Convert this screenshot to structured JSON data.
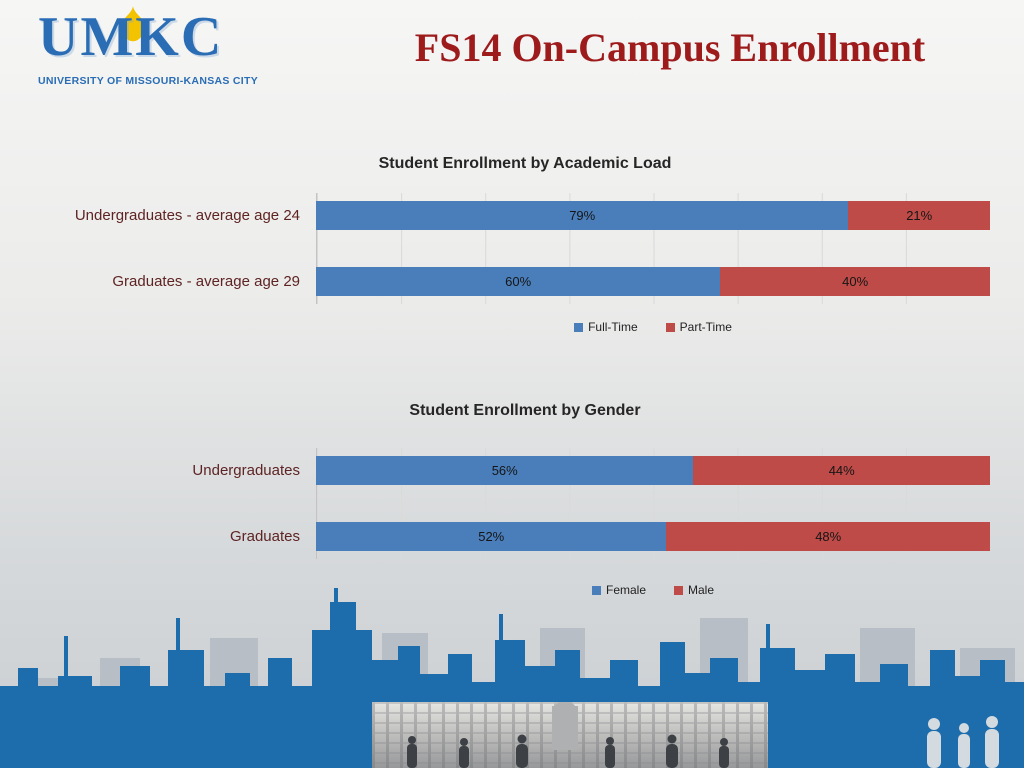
{
  "slide": {
    "title": "FS14 On-Campus Enrollment",
    "logo": {
      "text": "UMKC",
      "subtext": "UNIVERSITY OF MISSOURI-KANSAS CITY"
    }
  },
  "colors": {
    "brand_blue": "#2a6db5",
    "flame_yellow": "#f3c300",
    "title_red": "#9e1b1c",
    "label_maroon": "#5e2423",
    "bar_blue": "#4a7ebb",
    "bar_red": "#be4b48",
    "skyline_blue": "#1d6dad"
  },
  "chart_data": [
    {
      "type": "bar",
      "orientation": "horizontal",
      "stacked": true,
      "title": "Student Enrollment by Academic Load",
      "categories": [
        "Undergraduates - average age 24",
        "Graduates - average age 29"
      ],
      "series": [
        {
          "name": "Full-Time",
          "color": "#4a7ebb",
          "values": [
            79,
            60
          ]
        },
        {
          "name": "Part-Time",
          "color": "#be4b48",
          "values": [
            21,
            40
          ]
        }
      ],
      "value_label_format": "percent",
      "xlim": [
        0,
        100
      ],
      "grid": true,
      "legend_position": "bottom"
    },
    {
      "type": "bar",
      "orientation": "horizontal",
      "stacked": true,
      "title": "Student Enrollment by Gender",
      "categories": [
        "Undergraduates",
        "Graduates"
      ],
      "series": [
        {
          "name": "Female",
          "color": "#4a7ebb",
          "values": [
            56,
            52
          ]
        },
        {
          "name": "Male",
          "color": "#be4b48",
          "values": [
            44,
            48
          ]
        }
      ],
      "value_label_format": "percent",
      "xlim": [
        0,
        100
      ],
      "grid": true,
      "legend_position": "bottom"
    }
  ]
}
